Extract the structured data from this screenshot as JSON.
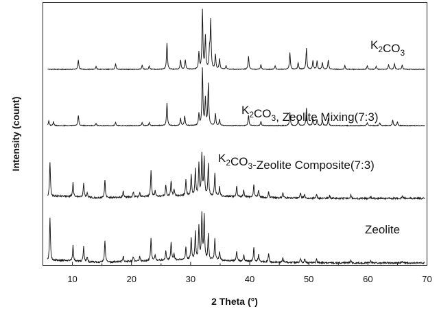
{
  "chart_data": {
    "type": "line",
    "xlabel": "2 Theta (°)",
    "ylabel": "Intensity (count)",
    "xlim": [
      5,
      70
    ],
    "x_ticks": [
      "10",
      "20",
      "30",
      "40",
      "50",
      "60",
      "70"
    ],
    "y_ticks_shown": false,
    "grid": false,
    "legend": "none",
    "series": [
      {
        "name": "K2CO3",
        "label_main": "K",
        "label_sub": "2",
        "label_rest": "CO",
        "label_sub2": "3",
        "label_tail": "",
        "color": "#1a1a1a",
        "peaks": [
          [
            11.0,
            0.16
          ],
          [
            14.0,
            0.05
          ],
          [
            17.3,
            0.09
          ],
          [
            21.8,
            0.07
          ],
          [
            23.0,
            0.06
          ],
          [
            26.0,
            0.45
          ],
          [
            28.3,
            0.16
          ],
          [
            29.1,
            0.16
          ],
          [
            31.4,
            0.28
          ],
          [
            32.0,
            1.0
          ],
          [
            32.5,
            0.55
          ],
          [
            33.2,
            0.3
          ],
          [
            33.4,
            0.8
          ],
          [
            34.2,
            0.25
          ],
          [
            34.9,
            0.18
          ],
          [
            36.0,
            0.06
          ],
          [
            39.8,
            0.22
          ],
          [
            41.9,
            0.08
          ],
          [
            44.3,
            0.06
          ],
          [
            46.8,
            0.28
          ],
          [
            48.2,
            0.12
          ],
          [
            49.6,
            0.36
          ],
          [
            50.7,
            0.15
          ],
          [
            51.4,
            0.14
          ],
          [
            52.3,
            0.12
          ],
          [
            53.3,
            0.16
          ],
          [
            56.1,
            0.06
          ],
          [
            59.9,
            0.06
          ],
          [
            61.4,
            0.05
          ],
          [
            63.5,
            0.08
          ],
          [
            64.5,
            0.1
          ],
          [
            65.8,
            0.07
          ]
        ]
      },
      {
        "name": "K2CO3, Zeolite Mixing(7:3)",
        "label_main": "K",
        "label_sub": "2",
        "label_rest": "CO",
        "label_sub2": "3",
        "label_tail": ", Zeolite Mixing(7:3)",
        "color": "#1a1a1a",
        "peaks": [
          [
            6.0,
            0.08
          ],
          [
            6.8,
            0.06
          ],
          [
            11.0,
            0.17
          ],
          [
            14.0,
            0.04
          ],
          [
            17.3,
            0.06
          ],
          [
            21.8,
            0.05
          ],
          [
            23.0,
            0.05
          ],
          [
            26.0,
            0.38
          ],
          [
            28.3,
            0.12
          ],
          [
            29.0,
            0.16
          ],
          [
            31.4,
            0.2
          ],
          [
            32.0,
            0.95
          ],
          [
            32.5,
            0.45
          ],
          [
            33.0,
            0.7
          ],
          [
            34.2,
            0.2
          ],
          [
            34.9,
            0.1
          ],
          [
            39.8,
            0.17
          ],
          [
            41.9,
            0.07
          ],
          [
            46.8,
            0.22
          ],
          [
            48.2,
            0.1
          ],
          [
            49.6,
            0.29
          ],
          [
            50.7,
            0.12
          ],
          [
            51.4,
            0.1
          ],
          [
            52.3,
            0.09
          ],
          [
            53.3,
            0.12
          ],
          [
            59.9,
            0.05
          ],
          [
            62.0,
            0.05
          ],
          [
            64.2,
            0.09
          ],
          [
            65.0,
            0.06
          ]
        ]
      },
      {
        "name": "K2CO3-Zeolite Composite(7:3)",
        "label_main": "K",
        "label_sub": "2",
        "label_rest": "CO",
        "label_sub2": "3",
        "label_tail": "-Zeolite Composite(7:3)",
        "color": "#1a1a1a",
        "peaks": [
          [
            6.2,
            0.68
          ],
          [
            10.1,
            0.27
          ],
          [
            11.9,
            0.28
          ],
          [
            12.5,
            0.1
          ],
          [
            15.5,
            0.35
          ],
          [
            18.6,
            0.12
          ],
          [
            20.3,
            0.1
          ],
          [
            21.4,
            0.08
          ],
          [
            23.3,
            0.5
          ],
          [
            24.0,
            0.1
          ],
          [
            25.8,
            0.2
          ],
          [
            26.7,
            0.3
          ],
          [
            27.2,
            0.12
          ],
          [
            29.2,
            0.3
          ],
          [
            30.1,
            0.4
          ],
          [
            30.8,
            0.5
          ],
          [
            31.4,
            0.6
          ],
          [
            31.9,
            0.8
          ],
          [
            32.3,
            0.72
          ],
          [
            33.0,
            0.62
          ],
          [
            34.1,
            0.45
          ],
          [
            34.9,
            0.18
          ],
          [
            37.8,
            0.2
          ],
          [
            39.0,
            0.14
          ],
          [
            40.7,
            0.25
          ],
          [
            41.5,
            0.15
          ],
          [
            43.2,
            0.12
          ],
          [
            45.6,
            0.1
          ],
          [
            48.6,
            0.11
          ],
          [
            49.3,
            0.08
          ],
          [
            51.3,
            0.08
          ],
          [
            53.5,
            0.05
          ],
          [
            57.1,
            0.06
          ],
          [
            60.5,
            0.04
          ],
          [
            65.8,
            0.05
          ]
        ]
      },
      {
        "name": "Zeolite",
        "label_main": "Zeolite",
        "label_sub": "",
        "label_rest": "",
        "label_sub2": "",
        "label_tail": "",
        "color": "#1a1a1a",
        "peaks": [
          [
            6.2,
            0.72
          ],
          [
            10.1,
            0.25
          ],
          [
            11.9,
            0.25
          ],
          [
            12.5,
            0.08
          ],
          [
            15.5,
            0.35
          ],
          [
            18.6,
            0.1
          ],
          [
            20.3,
            0.08
          ],
          [
            21.4,
            0.08
          ],
          [
            23.3,
            0.38
          ],
          [
            24.0,
            0.08
          ],
          [
            25.8,
            0.15
          ],
          [
            26.7,
            0.3
          ],
          [
            27.2,
            0.1
          ],
          [
            29.2,
            0.22
          ],
          [
            30.1,
            0.36
          ],
          [
            30.8,
            0.45
          ],
          [
            31.4,
            0.55
          ],
          [
            31.9,
            0.75
          ],
          [
            32.3,
            0.72
          ],
          [
            33.0,
            0.42
          ],
          [
            34.1,
            0.36
          ],
          [
            34.9,
            0.14
          ],
          [
            37.8,
            0.16
          ],
          [
            39.0,
            0.1
          ],
          [
            40.7,
            0.23
          ],
          [
            41.5,
            0.12
          ],
          [
            43.2,
            0.13
          ],
          [
            45.6,
            0.07
          ],
          [
            48.6,
            0.07
          ],
          [
            49.3,
            0.06
          ],
          [
            51.3,
            0.06
          ],
          [
            57.1,
            0.05
          ],
          [
            60.5,
            0.04
          ],
          [
            65.8,
            0.04
          ]
        ]
      }
    ]
  }
}
